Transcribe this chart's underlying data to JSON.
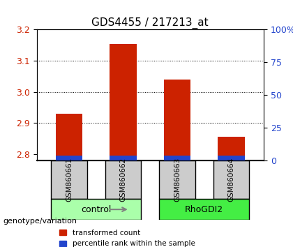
{
  "title": "GDS4455 / 217213_at",
  "samples": [
    "GSM860661",
    "GSM860662",
    "GSM860663",
    "GSM860664"
  ],
  "red_values": [
    2.93,
    3.153,
    3.04,
    2.855
  ],
  "blue_values": [
    2.806,
    2.808,
    2.81,
    2.804
  ],
  "y_min": 2.78,
  "y_max": 3.2,
  "y_ticks_left": [
    2.8,
    2.9,
    3.0,
    3.1,
    3.2
  ],
  "y_ticks_right": [
    0,
    25,
    50,
    75,
    100
  ],
  "y_ticks_right_labels": [
    "0",
    "25",
    "50",
    "75",
    "100%"
  ],
  "groups": [
    {
      "label": "control",
      "samples": [
        0,
        1
      ],
      "color": "#aaffaa"
    },
    {
      "label": "RhoGDI2",
      "samples": [
        2,
        3
      ],
      "color": "#44ee44"
    }
  ],
  "group_label": "genotype/variation",
  "legend_red": "transformed count",
  "legend_blue": "percentile rank within the sample",
  "red_color": "#cc2200",
  "blue_color": "#2244cc",
  "bar_width": 0.5,
  "sample_bg_color": "#cccccc",
  "title_fontsize": 11,
  "axis_label_color_left": "#cc2200",
  "axis_label_color_right": "#2244cc"
}
